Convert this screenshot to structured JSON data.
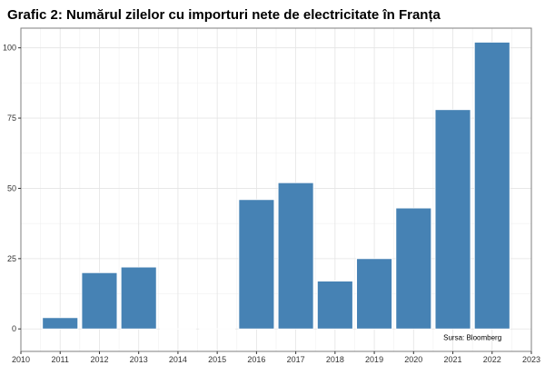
{
  "chart_data": {
    "type": "bar",
    "title": "Grafic 2: Numărul zilelor cu importuri nete de electricitate în Franța",
    "xlabel": "",
    "ylabel": "",
    "categories": [
      2011,
      2012,
      2013,
      2014,
      2015,
      2016,
      2017,
      2018,
      2019,
      2020,
      2021,
      2022
    ],
    "values": [
      4,
      20,
      22,
      0,
      0,
      46,
      52,
      17,
      25,
      43,
      78,
      102
    ],
    "x_ticks": [
      "2010",
      "2011",
      "2012",
      "2013",
      "2014",
      "2015",
      "2016",
      "2017",
      "2018",
      "2019",
      "2020",
      "2021",
      "2022",
      "2023"
    ],
    "y_ticks": [
      "0",
      "25",
      "50",
      "75",
      "100"
    ],
    "xlim": [
      2010,
      2023
    ],
    "ylim": [
      -8,
      107
    ],
    "grid": true,
    "bar_color": "#4682b4",
    "annotation": "Sursa: Bloomberg"
  }
}
